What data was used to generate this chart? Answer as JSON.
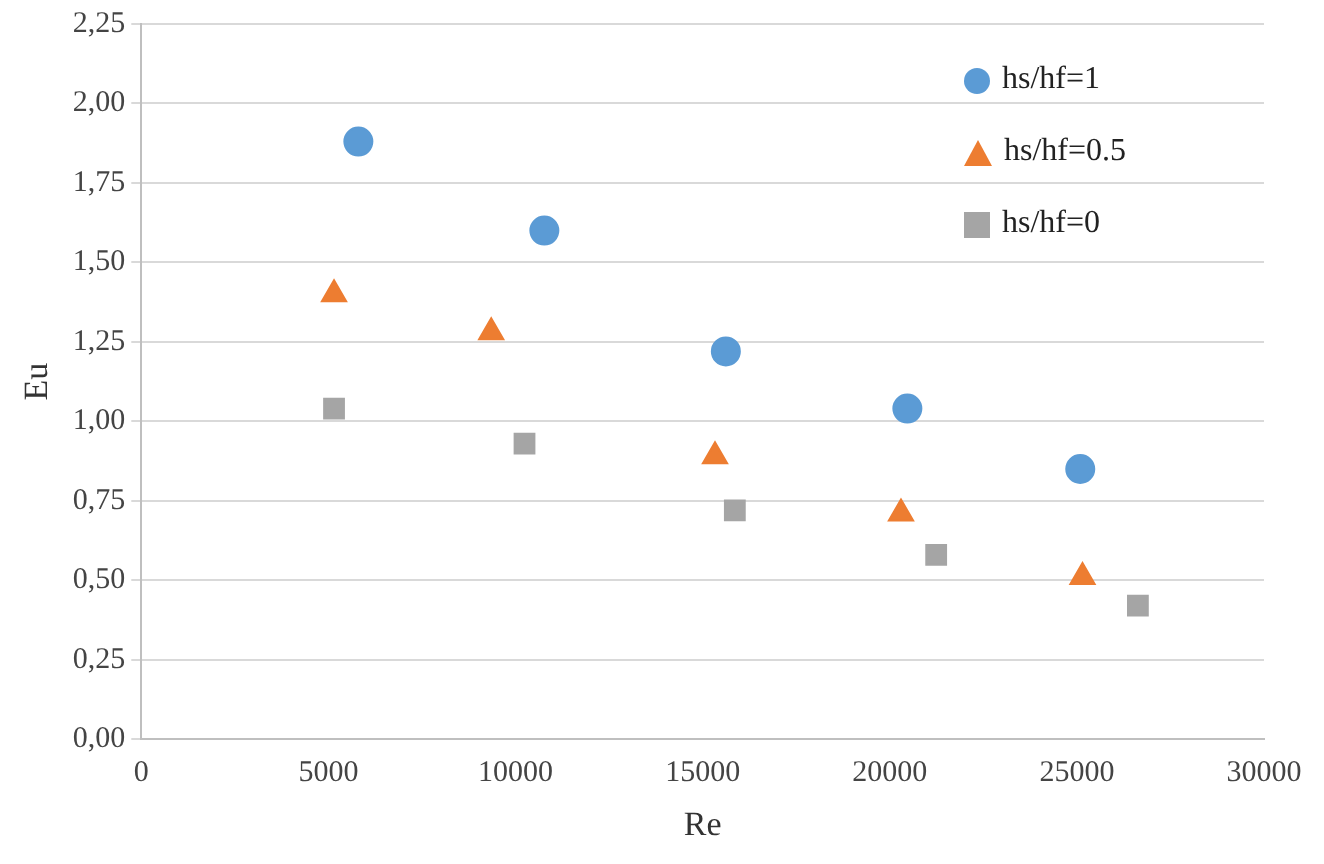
{
  "chart_data": {
    "type": "scatter",
    "xlabel": "Re",
    "ylabel": "Eu",
    "series": [
      {
        "name": "hs/hf=1",
        "color": "#5b9bd5",
        "marker": "circle",
        "x": [
          5800,
          10770,
          15620,
          20470,
          25090
        ],
        "values": [
          1.88,
          1.6,
          1.22,
          1.04,
          0.85
        ]
      },
      {
        "name": "hs/hf=0.5",
        "color": "#ed7d31",
        "marker": "triangle",
        "x": [
          5150,
          9350,
          15330,
          20300,
          25150
        ],
        "values": [
          1.4,
          1.28,
          0.89,
          0.71,
          0.51
        ]
      },
      {
        "name": "hs/hf=0",
        "color": "#a5a5a5",
        "marker": "square",
        "x": [
          5150,
          10240,
          15860,
          21240,
          26630
        ],
        "values": [
          1.04,
          0.93,
          0.72,
          0.58,
          0.42
        ]
      }
    ],
    "xlim": [
      0,
      30000
    ],
    "xticks": [
      0,
      5000,
      10000,
      15000,
      20000,
      25000,
      30000
    ],
    "ylim": [
      0,
      2.25
    ],
    "yticks": [
      {
        "value": 0,
        "label": "0,00"
      },
      {
        "value": 0.25,
        "label": "0,25"
      },
      {
        "value": 0.5,
        "label": "0,50"
      },
      {
        "value": 0.75,
        "label": "0,75"
      },
      {
        "value": 1,
        "label": "1,00"
      },
      {
        "value": 1.25,
        "label": "1,25"
      },
      {
        "value": 1.5,
        "label": "1,50"
      },
      {
        "value": 1.75,
        "label": "1,75"
      },
      {
        "value": 2,
        "label": "2,00"
      },
      {
        "value": 2.25,
        "label": "2,25"
      }
    ],
    "grid": "y",
    "legend": "top right"
  }
}
